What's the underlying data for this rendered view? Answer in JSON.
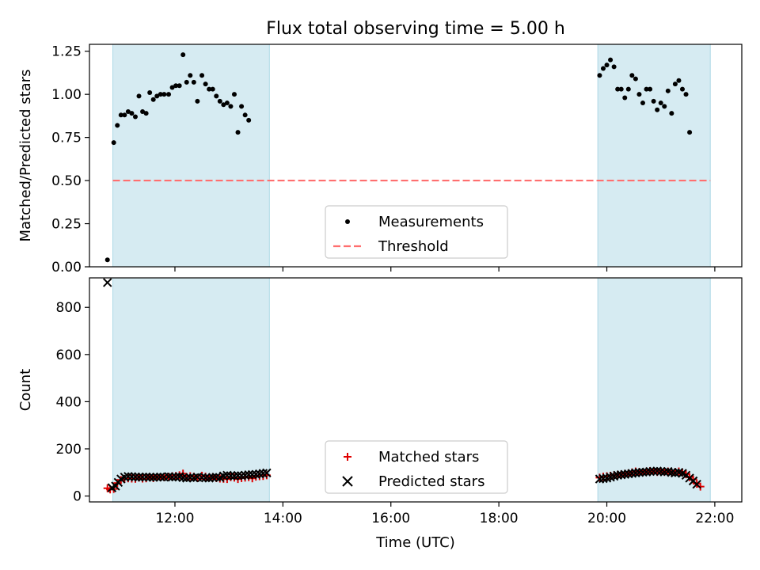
{
  "title": "Flux total observing time = 5.00 h",
  "colors": {
    "band": "#add8e6",
    "measurement": "#000000",
    "threshold": "#ff6f6f",
    "matched": "#e00000",
    "predicted": "#000000"
  },
  "chart_data": [
    {
      "type": "scatter",
      "ylabel": "Matched/Predicted stars",
      "xlabel": "",
      "xlim": [
        "10:25",
        "22:30"
      ],
      "ylim": [
        0,
        1.29
      ],
      "yticks": [
        0.0,
        0.25,
        0.5,
        0.75,
        1.0,
        1.25
      ],
      "ytick_labels": [
        "0.00",
        "0.25",
        "0.50",
        "0.75",
        "1.00",
        "1.25"
      ],
      "xtick_labels_visible": false,
      "observing_windows": [
        [
          "10:51",
          "13:45"
        ],
        [
          "19:50",
          "21:55"
        ]
      ],
      "threshold": {
        "value": 0.5,
        "x_range": [
          "10:51",
          "21:55"
        ],
        "name": "Threshold"
      },
      "legend_placement": "lower center",
      "legend": [
        "Measurements",
        "Threshold"
      ],
      "series": [
        {
          "name": "Measurements",
          "points": [
            [
              "10:45",
              0.04
            ],
            [
              "10:52",
              0.72
            ],
            [
              "10:56",
              0.82
            ],
            [
              "11:00",
              0.88
            ],
            [
              "11:04",
              0.88
            ],
            [
              "11:08",
              0.9
            ],
            [
              "11:12",
              0.89
            ],
            [
              "11:16",
              0.87
            ],
            [
              "11:20",
              0.99
            ],
            [
              "11:24",
              0.9
            ],
            [
              "11:28",
              0.89
            ],
            [
              "11:32",
              1.01
            ],
            [
              "11:36",
              0.97
            ],
            [
              "11:40",
              0.99
            ],
            [
              "11:44",
              1.0
            ],
            [
              "11:48",
              1.0
            ],
            [
              "11:53",
              1.0
            ],
            [
              "11:57",
              1.04
            ],
            [
              "12:01",
              1.05
            ],
            [
              "12:05",
              1.05
            ],
            [
              "12:09",
              1.23
            ],
            [
              "12:13",
              1.07
            ],
            [
              "12:17",
              1.11
            ],
            [
              "12:21",
              1.07
            ],
            [
              "12:25",
              0.96
            ],
            [
              "12:30",
              1.11
            ],
            [
              "12:34",
              1.06
            ],
            [
              "12:38",
              1.03
            ],
            [
              "12:42",
              1.03
            ],
            [
              "12:46",
              0.99
            ],
            [
              "12:50",
              0.96
            ],
            [
              "12:54",
              0.94
            ],
            [
              "12:58",
              0.95
            ],
            [
              "13:02",
              0.93
            ],
            [
              "13:06",
              1.0
            ],
            [
              "13:10",
              0.78
            ],
            [
              "13:14",
              0.93
            ],
            [
              "13:18",
              0.88
            ],
            [
              "13:22",
              0.85
            ],
            [
              "19:52",
              1.11
            ],
            [
              "19:56",
              1.15
            ],
            [
              "20:00",
              1.17
            ],
            [
              "20:04",
              1.2
            ],
            [
              "20:08",
              1.16
            ],
            [
              "20:12",
              1.03
            ],
            [
              "20:16",
              1.03
            ],
            [
              "20:20",
              0.98
            ],
            [
              "20:24",
              1.03
            ],
            [
              "20:28",
              1.11
            ],
            [
              "20:32",
              1.09
            ],
            [
              "20:36",
              1.0
            ],
            [
              "20:40",
              0.95
            ],
            [
              "20:44",
              1.03
            ],
            [
              "20:48",
              1.03
            ],
            [
              "20:52",
              0.96
            ],
            [
              "20:56",
              0.91
            ],
            [
              "21:00",
              0.95
            ],
            [
              "21:04",
              0.93
            ],
            [
              "21:08",
              1.02
            ],
            [
              "21:12",
              0.89
            ],
            [
              "21:16",
              1.06
            ],
            [
              "21:20",
              1.08
            ],
            [
              "21:24",
              1.03
            ],
            [
              "21:28",
              1.0
            ],
            [
              "21:32",
              0.78
            ]
          ]
        }
      ]
    },
    {
      "type": "scatter",
      "ylabel": "Count",
      "xlabel": "Time (UTC)",
      "xlim": [
        "10:25",
        "22:30"
      ],
      "ylim": [
        -25,
        925
      ],
      "yticks": [
        0,
        200,
        400,
        600,
        800
      ],
      "ytick_labels": [
        "0",
        "200",
        "400",
        "600",
        "800"
      ],
      "xticks": [
        "12:00",
        "14:00",
        "16:00",
        "18:00",
        "20:00",
        "22:00"
      ],
      "xtick_labels": [
        "12:00",
        "14:00",
        "16:00",
        "18:00",
        "20:00",
        "22:00"
      ],
      "observing_windows": [
        [
          "10:51",
          "13:45"
        ],
        [
          "19:50",
          "21:55"
        ]
      ],
      "legend_placement": "lower center",
      "legend": [
        "Matched stars",
        "Predicted stars"
      ],
      "series": [
        {
          "name": "Matched stars",
          "points": [
            [
              "10:45",
              33
            ],
            [
              "10:48",
              28
            ],
            [
              "10:52",
              30
            ],
            [
              "10:56",
              55
            ],
            [
              "11:00",
              68
            ],
            [
              "11:04",
              72
            ],
            [
              "11:08",
              75
            ],
            [
              "11:12",
              74
            ],
            [
              "11:16",
              73
            ],
            [
              "11:20",
              78
            ],
            [
              "11:24",
              74
            ],
            [
              "11:28",
              75
            ],
            [
              "11:32",
              80
            ],
            [
              "11:36",
              76
            ],
            [
              "11:40",
              79
            ],
            [
              "11:44",
              80
            ],
            [
              "11:48",
              80
            ],
            [
              "11:53",
              82
            ],
            [
              "11:57",
              84
            ],
            [
              "12:01",
              85
            ],
            [
              "12:05",
              88
            ],
            [
              "12:09",
              95
            ],
            [
              "12:13",
              80
            ],
            [
              "12:17",
              84
            ],
            [
              "12:21",
              82
            ],
            [
              "12:25",
              76
            ],
            [
              "12:30",
              86
            ],
            [
              "12:34",
              82
            ],
            [
              "12:38",
              78
            ],
            [
              "12:42",
              80
            ],
            [
              "12:46",
              76
            ],
            [
              "12:50",
              74
            ],
            [
              "12:54",
              73
            ],
            [
              "12:58",
              72
            ],
            [
              "13:02",
              80
            ],
            [
              "13:06",
              78
            ],
            [
              "13:10",
              72
            ],
            [
              "13:14",
              76
            ],
            [
              "13:18",
              78
            ],
            [
              "13:22",
              80
            ],
            [
              "13:26",
              75
            ],
            [
              "13:30",
              82
            ],
            [
              "13:34",
              84
            ],
            [
              "13:38",
              85
            ],
            [
              "13:42",
              88
            ],
            [
              "19:52",
              78
            ],
            [
              "19:56",
              82
            ],
            [
              "20:00",
              84
            ],
            [
              "20:04",
              86
            ],
            [
              "20:08",
              88
            ],
            [
              "20:12",
              90
            ],
            [
              "20:16",
              92
            ],
            [
              "20:20",
              94
            ],
            [
              "20:24",
              96
            ],
            [
              "20:28",
              100
            ],
            [
              "20:32",
              104
            ],
            [
              "20:36",
              102
            ],
            [
              "20:40",
              100
            ],
            [
              "20:44",
              104
            ],
            [
              "20:48",
              106
            ],
            [
              "20:52",
              104
            ],
            [
              "20:56",
              102
            ],
            [
              "21:00",
              104
            ],
            [
              "21:04",
              102
            ],
            [
              "21:08",
              104
            ],
            [
              "21:12",
              98
            ],
            [
              "21:16",
              102
            ],
            [
              "21:20",
              104
            ],
            [
              "21:24",
              100
            ],
            [
              "21:28",
              92
            ],
            [
              "21:32",
              80
            ],
            [
              "21:36",
              70
            ],
            [
              "21:40",
              52
            ],
            [
              "21:44",
              40
            ]
          ]
        },
        {
          "name": "Predicted stars",
          "points": [
            [
              "10:45",
              905
            ],
            [
              "10:50",
              35
            ],
            [
              "10:54",
              42
            ],
            [
              "10:57",
              58
            ],
            [
              "11:00",
              72
            ],
            [
              "11:04",
              80
            ],
            [
              "11:08",
              83
            ],
            [
              "11:12",
              82
            ],
            [
              "11:16",
              81
            ],
            [
              "11:20",
              80
            ],
            [
              "11:24",
              80
            ],
            [
              "11:28",
              81
            ],
            [
              "11:32",
              80
            ],
            [
              "11:36",
              79
            ],
            [
              "11:40",
              80
            ],
            [
              "11:44",
              81
            ],
            [
              "11:48",
              80
            ],
            [
              "11:53",
              82
            ],
            [
              "11:57",
              80
            ],
            [
              "12:01",
              81
            ],
            [
              "12:05",
              82
            ],
            [
              "12:09",
              78
            ],
            [
              "12:13",
              76
            ],
            [
              "12:17",
              78
            ],
            [
              "12:21",
              77
            ],
            [
              "12:25",
              80
            ],
            [
              "12:30",
              78
            ],
            [
              "12:34",
              77
            ],
            [
              "12:38",
              76
            ],
            [
              "12:42",
              79
            ],
            [
              "12:46",
              80
            ],
            [
              "12:50",
              78
            ],
            [
              "12:54",
              85
            ],
            [
              "12:58",
              88
            ],
            [
              "13:02",
              86
            ],
            [
              "13:06",
              85
            ],
            [
              "13:10",
              87
            ],
            [
              "13:14",
              86
            ],
            [
              "13:18",
              88
            ],
            [
              "13:22",
              90
            ],
            [
              "13:26",
              91
            ],
            [
              "13:30",
              92
            ],
            [
              "13:34",
              94
            ],
            [
              "13:38",
              96
            ],
            [
              "13:42",
              98
            ],
            [
              "19:52",
              72
            ],
            [
              "19:56",
              74
            ],
            [
              "20:00",
              76
            ],
            [
              "20:04",
              80
            ],
            [
              "20:08",
              84
            ],
            [
              "20:12",
              88
            ],
            [
              "20:16",
              90
            ],
            [
              "20:20",
              92
            ],
            [
              "20:24",
              94
            ],
            [
              "20:28",
              96
            ],
            [
              "20:32",
              98
            ],
            [
              "20:36",
              100
            ],
            [
              "20:40",
              101
            ],
            [
              "20:44",
              102
            ],
            [
              "20:48",
              104
            ],
            [
              "20:52",
              105
            ],
            [
              "20:56",
              106
            ],
            [
              "21:00",
              104
            ],
            [
              "21:04",
              102
            ],
            [
              "21:08",
              104
            ],
            [
              "21:12",
              100
            ],
            [
              "21:16",
              98
            ],
            [
              "21:20",
              100
            ],
            [
              "21:24",
              96
            ],
            [
              "21:28",
              88
            ],
            [
              "21:32",
              76
            ],
            [
              "21:36",
              64
            ],
            [
              "21:40",
              50
            ]
          ]
        }
      ]
    }
  ]
}
